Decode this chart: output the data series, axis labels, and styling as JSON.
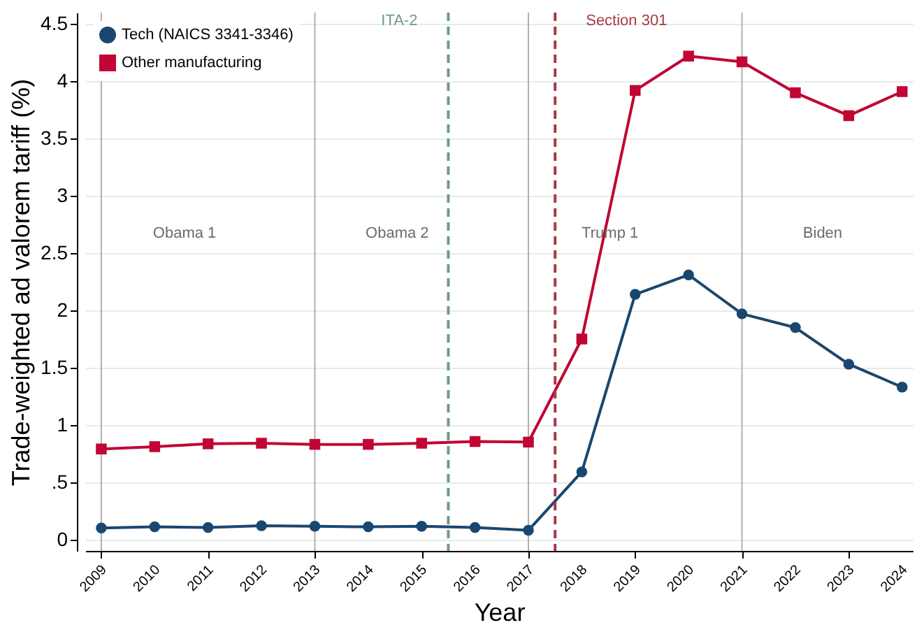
{
  "chart_data": {
    "type": "line",
    "xlabel": "Year",
    "ylabel": "Trade-weighted ad valorem tariff (%)",
    "x": [
      2009,
      2010,
      2011,
      2012,
      2013,
      2014,
      2015,
      2016,
      2017,
      2018,
      2019,
      2020,
      2021,
      2022,
      2023,
      2024
    ],
    "series": [
      {
        "name": "Tech (NAICS 3341-3346)",
        "color": "#1a476f",
        "marker": "circle",
        "values": [
          0.1,
          0.11,
          0.105,
          0.12,
          0.115,
          0.11,
          0.115,
          0.105,
          0.08,
          0.59,
          2.14,
          2.31,
          1.97,
          1.85,
          1.53,
          1.33
        ]
      },
      {
        "name": "Other manufacturing",
        "color": "#c10534",
        "marker": "square",
        "values": [
          0.79,
          0.81,
          0.835,
          0.84,
          0.83,
          0.83,
          0.84,
          0.855,
          0.85,
          1.75,
          3.92,
          4.22,
          4.17,
          3.9,
          3.7,
          3.91
        ]
      }
    ],
    "xlim": [
      2008.7,
      2024.2
    ],
    "xticks": [
      2009,
      2010,
      2011,
      2012,
      2013,
      2014,
      2015,
      2016,
      2017,
      2018,
      2019,
      2020,
      2021,
      2022,
      2023,
      2024
    ],
    "ylim": [
      -0.1,
      4.6
    ],
    "yticks": [
      0,
      {
        "value": 0.5,
        "label": ".5"
      },
      1,
      1.5,
      2,
      2.5,
      3,
      3.5,
      4,
      4.5
    ],
    "ref_lines": [
      {
        "axis": "x",
        "value": 2009,
        "color": "#b0b0b0",
        "line_style": "solid"
      },
      {
        "axis": "x",
        "value": 2013,
        "color": "#b0b0b0",
        "line_style": "solid"
      },
      {
        "axis": "x",
        "value": 2017,
        "color": "#b0b0b0",
        "line_style": "solid"
      },
      {
        "axis": "x",
        "value": 2021,
        "color": "#b0b0b0",
        "line_style": "solid"
      },
      {
        "axis": "x",
        "value": 2015.5,
        "label": "ITA-2",
        "color": "#6f9a8a",
        "line_style": "dashed"
      },
      {
        "axis": "x",
        "value": 2017.5,
        "label": "Section 301",
        "color": "#a83a44",
        "line_style": "dashed"
      }
    ],
    "annotations": [
      "Obama 1",
      "Obama 2",
      "Trump 1",
      "Biden"
    ],
    "grid": "y",
    "legend": "top left",
    "line_style": "solid"
  }
}
